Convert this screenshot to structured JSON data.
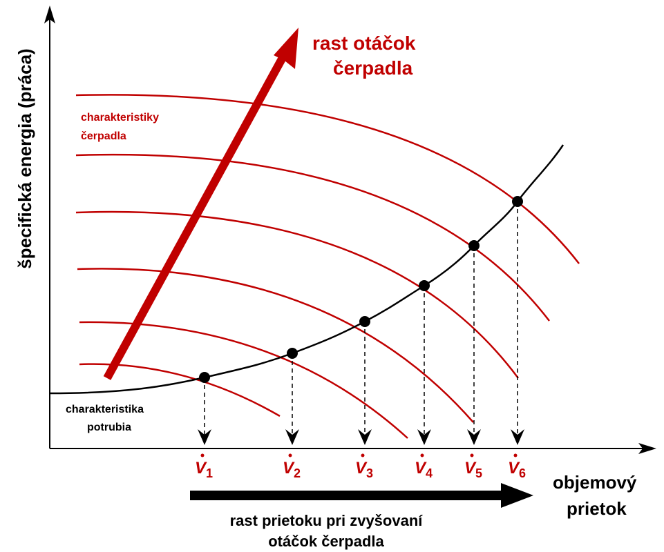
{
  "y_axis_label": "špecifická energia (práca)",
  "x_axis_label": [
    "objemový",
    "prietok"
  ],
  "speed_arrow_label": [
    "rast otáčok",
    "čerpadla"
  ],
  "pump_curves_label": [
    "charakteristiky",
    "čerpadla"
  ],
  "pipe_curve_label": [
    "charakteristika",
    "potrubia"
  ],
  "flow_arrow_label": [
    "rast prietoku pri zvyšovaní",
    "otáčok čerpadla"
  ],
  "points": [
    {
      "symbol": "V",
      "index": "1"
    },
    {
      "symbol": "V",
      "index": "2"
    },
    {
      "symbol": "V",
      "index": "3"
    },
    {
      "symbol": "V",
      "index": "4"
    },
    {
      "symbol": "V",
      "index": "5"
    },
    {
      "symbol": "V",
      "index": "6"
    }
  ]
}
